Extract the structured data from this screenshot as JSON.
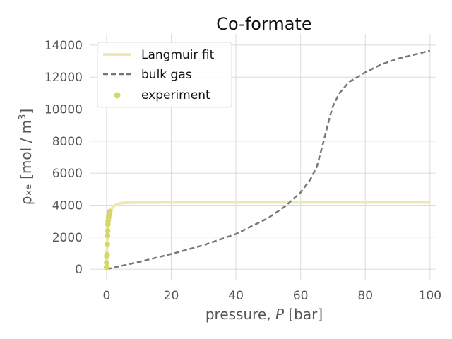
{
  "chart_data": {
    "type": "line",
    "title": "Co-formate",
    "xlabel": {
      "prefix": "pressure, ",
      "symbol": "P",
      "suffix": " [bar]"
    },
    "ylabel": {
      "main": "ρₓₑ [mol / m",
      "sup": "3",
      "end": "]"
    },
    "xlim": [
      -5,
      102
    ],
    "ylim": [
      -700,
      14700
    ],
    "xticks": [
      0,
      20,
      40,
      60,
      80,
      100
    ],
    "yticks": [
      0,
      2000,
      4000,
      6000,
      8000,
      10000,
      12000,
      14000
    ],
    "grid": true,
    "legend_position": "upper-left",
    "series": [
      {
        "name": "Langmuir fit",
        "kind": "line",
        "style": "solid",
        "color": "#ede9b0",
        "x": [
          0,
          0.1,
          0.2,
          0.3,
          0.5,
          0.7,
          1,
          1.5,
          2,
          3,
          4,
          5,
          7,
          10,
          15,
          20,
          40,
          60,
          80,
          100
        ],
        "y": [
          0,
          1300,
          1900,
          2300,
          2800,
          3150,
          3450,
          3750,
          3900,
          4050,
          4110,
          4140,
          4160,
          4170,
          4175,
          4180,
          4180,
          4180,
          4180,
          4180
        ]
      },
      {
        "name": "bulk gas",
        "kind": "line",
        "style": "dashed",
        "color": "#777777",
        "x": [
          0,
          10,
          20,
          30,
          40,
          50,
          55,
          60,
          63,
          65,
          67,
          69,
          70,
          72,
          75,
          80,
          85,
          90,
          95,
          100
        ],
        "y": [
          0,
          450,
          950,
          1500,
          2200,
          3200,
          3900,
          4800,
          5600,
          6400,
          7900,
          9500,
          10200,
          11000,
          11700,
          12300,
          12800,
          13150,
          13400,
          13650
        ]
      },
      {
        "name": "experiment",
        "kind": "scatter",
        "color": "#d6d66a",
        "x": [
          0.02,
          0.05,
          0.1,
          0.15,
          0.2,
          0.3,
          0.35,
          0.4,
          0.5,
          0.6,
          0.7,
          0.8,
          0.9,
          1.0
        ],
        "y": [
          100,
          400,
          800,
          900,
          1550,
          2100,
          2400,
          2800,
          3000,
          3200,
          3350,
          3450,
          3550,
          3600
        ]
      }
    ]
  }
}
